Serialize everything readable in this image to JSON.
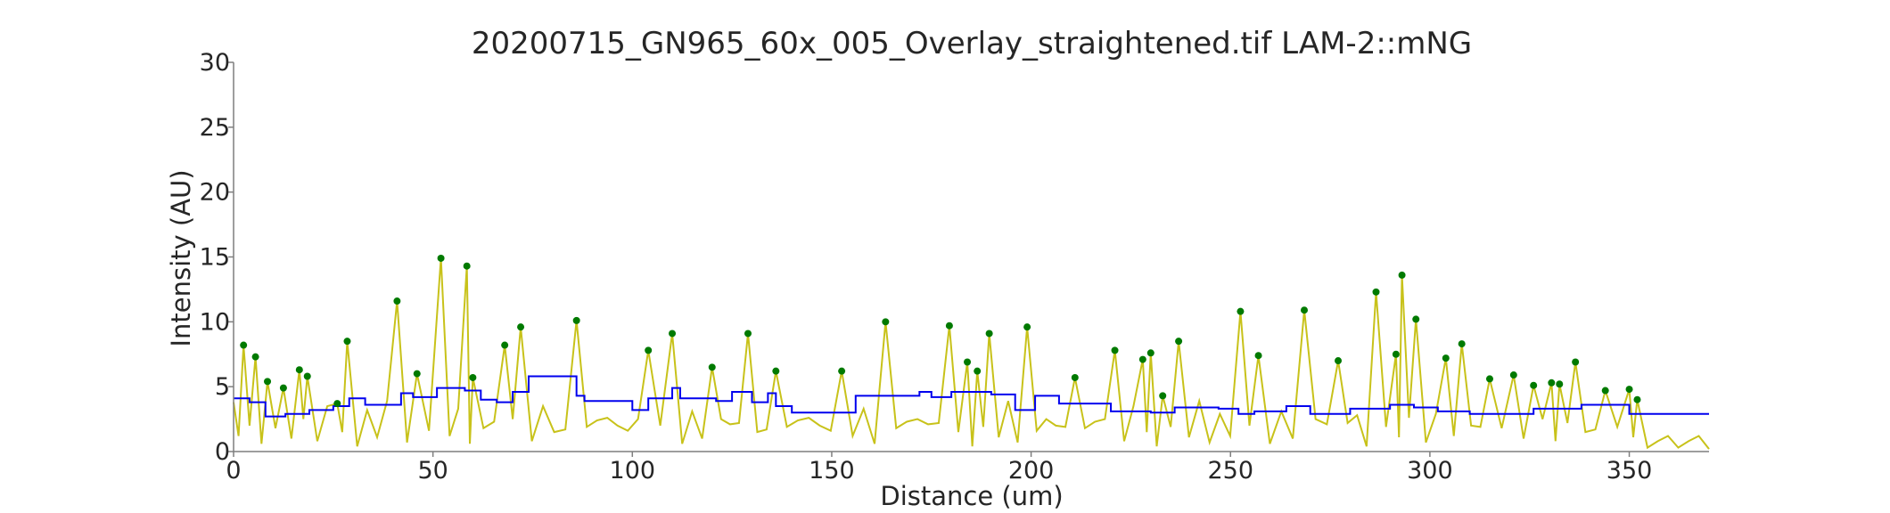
{
  "chart_data": {
    "type": "line",
    "title": "20200715_GN965_60x_005_Overlay_straightened.tif LAM-2::mNG",
    "xlabel": "Distance (um)",
    "ylabel": "Intensity (AU)",
    "xlim": [
      0,
      370
    ],
    "ylim": [
      0,
      30
    ],
    "xticks": [
      0,
      50,
      100,
      150,
      200,
      250,
      300,
      350
    ],
    "yticks": [
      0,
      5,
      10,
      15,
      20,
      25,
      30
    ],
    "grid": false,
    "legend": "none",
    "colors": {
      "signal": "#c8c21a",
      "baseline": "#0000ee",
      "peaks": "#007a00",
      "axis": "#7f7f7f",
      "text": "#262626"
    },
    "peaks": {
      "x": [
        2.5,
        5.5,
        8.5,
        12.5,
        16.5,
        18.5,
        26,
        28.5,
        41,
        46,
        52,
        58.5,
        60,
        68,
        72,
        86,
        104,
        110,
        120,
        129,
        136,
        152.5,
        163.5,
        179.5,
        184,
        186.5,
        189.5,
        199,
        211,
        221,
        228,
        230,
        233,
        237,
        252.5,
        257,
        268.5,
        277,
        286.5,
        291.5,
        293,
        296.5,
        304,
        308,
        315,
        321,
        326,
        330.5,
        332.5,
        336.5,
        344,
        350,
        352
      ],
      "y": [
        8.2,
        7.3,
        5.4,
        4.9,
        6.3,
        5.8,
        3.7,
        8.5,
        11.6,
        6.0,
        14.9,
        14.3,
        5.7,
        8.2,
        9.6,
        10.1,
        7.8,
        9.1,
        6.5,
        9.1,
        6.2,
        6.2,
        10.0,
        9.7,
        6.9,
        6.2,
        9.1,
        9.6,
        5.7,
        7.8,
        7.1,
        7.6,
        4.3,
        8.5,
        10.8,
        7.4,
        10.9,
        7.0,
        12.3,
        7.5,
        13.6,
        10.2,
        7.2,
        8.3,
        5.6,
        5.9,
        5.1,
        5.3,
        5.2,
        6.9,
        4.7,
        4.8,
        4.0
      ]
    },
    "baseline_steps": {
      "x": [
        0,
        4,
        8,
        13,
        19,
        25,
        29,
        33,
        42,
        45,
        51,
        58,
        62,
        66,
        70,
        74,
        86,
        88,
        100,
        104,
        110,
        112,
        121,
        125,
        130,
        134,
        136,
        140,
        156,
        172,
        175,
        180,
        190,
        196,
        201,
        207,
        220,
        230,
        236,
        247,
        252,
        256,
        264,
        270,
        280,
        290,
        296,
        302,
        310,
        326,
        338,
        350,
        370
      ],
      "y": [
        4.1,
        3.8,
        2.7,
        2.9,
        3.2,
        3.5,
        4.1,
        3.6,
        4.5,
        4.2,
        4.9,
        4.7,
        4.0,
        3.8,
        4.6,
        5.8,
        4.3,
        3.9,
        3.2,
        4.1,
        4.9,
        4.1,
        3.9,
        4.6,
        3.8,
        4.5,
        3.5,
        3.0,
        4.3,
        4.6,
        4.2,
        4.6,
        4.4,
        3.2,
        4.3,
        3.7,
        3.1,
        3.0,
        3.4,
        3.3,
        2.9,
        3.1,
        3.5,
        2.9,
        3.3,
        3.6,
        3.4,
        3.1,
        2.9,
        3.3,
        3.6,
        2.9,
        2.9
      ]
    }
  }
}
